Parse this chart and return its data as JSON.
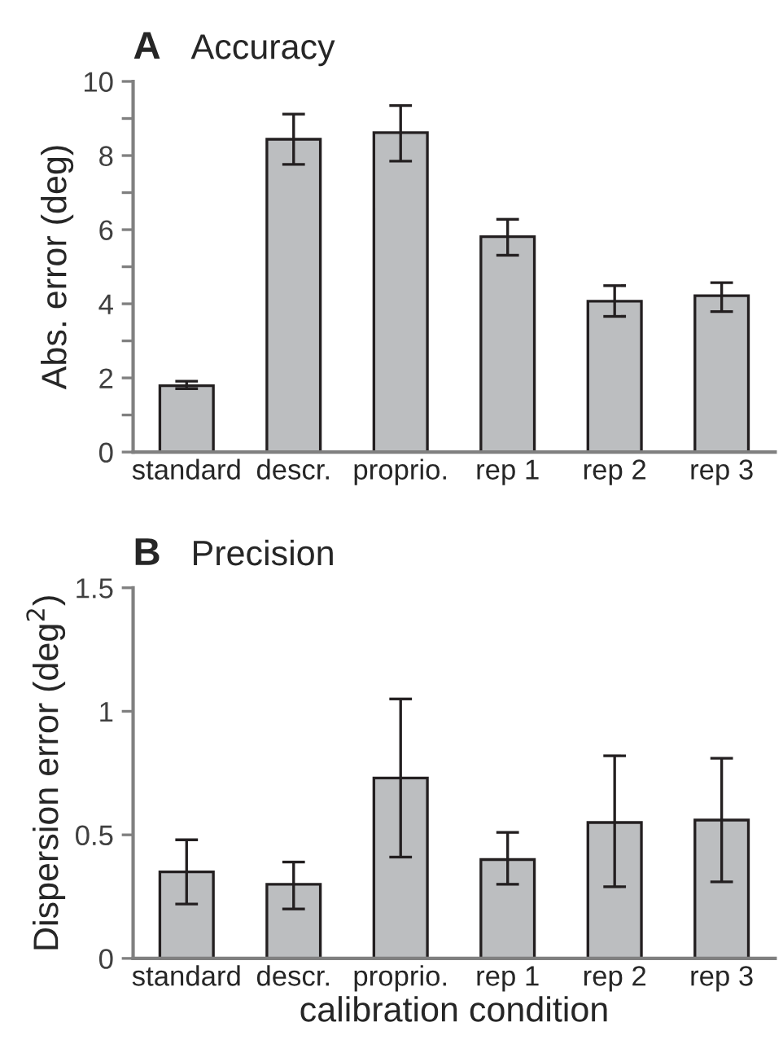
{
  "chart_data": [
    {
      "type": "bar",
      "title": "Accuracy",
      "annotations": [
        "A"
      ],
      "ylabel": "Abs. error (deg)",
      "categories": [
        "standard",
        "descr.",
        "proprio.",
        "rep 1",
        "rep 2",
        "rep 3"
      ],
      "values": [
        1.79,
        8.44,
        8.62,
        5.81,
        4.07,
        4.22
      ],
      "errors": [
        [
          1.71,
          1.91
        ],
        [
          7.76,
          9.12
        ],
        [
          7.85,
          9.35
        ],
        [
          5.31,
          6.28
        ],
        [
          3.66,
          4.49
        ],
        [
          3.79,
          4.57
        ]
      ],
      "color": "#bcbec0",
      "ylim": [
        0,
        10
      ],
      "yticks": [
        0,
        {
          "value": 1,
          "label": null
        },
        2,
        {
          "value": 3,
          "label": null
        },
        4,
        {
          "value": 5,
          "label": null
        },
        6,
        {
          "value": 7,
          "label": null
        },
        8,
        {
          "value": 9,
          "label": null
        },
        10
      ],
      "grid": false,
      "legend": false
    },
    {
      "type": "bar",
      "title": "Precision",
      "annotations": [
        "B"
      ],
      "ylabel": "Dispersion error (deg$^{2}$)",
      "xlabel": "calibration condition",
      "categories": [
        "standard",
        "descr.",
        "proprio.",
        "rep 1",
        "rep 2",
        "rep 3"
      ],
      "values": [
        0.35,
        0.3,
        0.73,
        0.4,
        0.55,
        0.56
      ],
      "errors": [
        [
          0.22,
          0.48
        ],
        [
          0.2,
          0.39
        ],
        [
          0.41,
          1.05
        ],
        [
          0.3,
          0.51
        ],
        [
          0.29,
          0.82
        ],
        [
          0.31,
          0.81
        ]
      ],
      "color": "#bcbec0",
      "ylim": [
        0,
        1.5
      ],
      "yticks": [
        0,
        0.5,
        1,
        1.5
      ],
      "grid": false,
      "legend": false
    }
  ]
}
